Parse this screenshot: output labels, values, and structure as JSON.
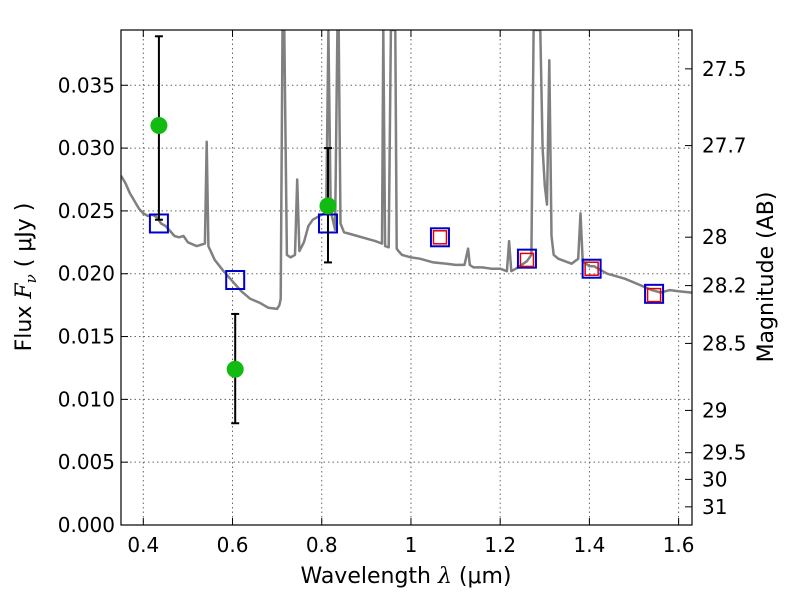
{
  "chart_data": {
    "type": "scatter",
    "xlabel_pre": "Wavelength  ",
    "xlabel_sym": "λ",
    "xlabel_unit": " (μm)",
    "ylabel_pre": "Flux  ",
    "ylabel_sym": "F",
    "ylabel_sub": "ν",
    "ylabel_unit": "  ( μJy )",
    "y2label": "Magnitude (AB)",
    "xlim": [
      0.35,
      1.63
    ],
    "ylim": [
      0.0,
      0.0394
    ],
    "grid": true,
    "xticks": [
      0.4,
      0.6,
      0.8,
      1.0,
      1.2,
      1.4,
      1.6
    ],
    "xtick_labels": [
      "0.4",
      "0.6",
      "0.8",
      "1",
      "1.2",
      "1.4",
      "1.6"
    ],
    "yticks": [
      0.0,
      0.005,
      0.01,
      0.015,
      0.02,
      0.025,
      0.03,
      0.035
    ],
    "ytick_labels": [
      "0.000",
      "0.005",
      "0.010",
      "0.015",
      "0.020",
      "0.025",
      "0.030",
      "0.035"
    ],
    "mag_ticks": [
      {
        "mag": 27.5,
        "label": "27.5"
      },
      {
        "mag": 27.7,
        "label": "27.7"
      },
      {
        "mag": 28.0,
        "label": "28"
      },
      {
        "mag": 28.2,
        "label": "28.2"
      },
      {
        "mag": 28.5,
        "label": "28.5"
      },
      {
        "mag": 29.0,
        "label": "29"
      },
      {
        "mag": 29.5,
        "label": "29.5"
      },
      {
        "mag": 30.0,
        "label": "30"
      },
      {
        "mag": 31.0,
        "label": "31"
      }
    ],
    "series": [
      {
        "kind": "errorbar",
        "color": "#11bb11",
        "points": [
          {
            "x": 0.435,
            "y": 0.0318,
            "lo": 0.0243,
            "hi": 0.0389
          },
          {
            "x": 0.606,
            "y": 0.0124,
            "lo": 0.0081,
            "hi": 0.0168
          },
          {
            "x": 0.814,
            "y": 0.0254,
            "lo": 0.0209,
            "hi": 0.03
          }
        ]
      },
      {
        "kind": "model_bandpass",
        "color": "#0000cc",
        "points": [
          {
            "x": 0.435,
            "y": 0.024
          },
          {
            "x": 0.606,
            "y": 0.0195
          },
          {
            "x": 0.814,
            "y": 0.024
          },
          {
            "x": 1.065,
            "y": 0.0229
          },
          {
            "x": 1.26,
            "y": 0.0212
          },
          {
            "x": 1.405,
            "y": 0.0204
          },
          {
            "x": 1.545,
            "y": 0.0184
          }
        ]
      },
      {
        "kind": "model_inner",
        "color": "#dd0000",
        "points": [
          {
            "x": 1.065,
            "y": 0.0229
          },
          {
            "x": 1.26,
            "y": 0.0211
          },
          {
            "x": 1.405,
            "y": 0.0204
          },
          {
            "x": 1.545,
            "y": 0.0183
          }
        ]
      },
      {
        "kind": "spectrum",
        "color": "#808080",
        "x": [
          0.35,
          0.36,
          0.37,
          0.38,
          0.39,
          0.4,
          0.41,
          0.42,
          0.43,
          0.44,
          0.45,
          0.46,
          0.47,
          0.48,
          0.49,
          0.5,
          0.52,
          0.538,
          0.542,
          0.546,
          0.56,
          0.58,
          0.6,
          0.62,
          0.64,
          0.66,
          0.68,
          0.7,
          0.705,
          0.708,
          0.712,
          0.714,
          0.716,
          0.718,
          0.722,
          0.73,
          0.74,
          0.745,
          0.75,
          0.76,
          0.77,
          0.78,
          0.79,
          0.8,
          0.81,
          0.815,
          0.82,
          0.83,
          0.835,
          0.838,
          0.842,
          0.85,
          0.86,
          0.88,
          0.9,
          0.92,
          0.935,
          0.938,
          0.942,
          0.95,
          0.955,
          0.958,
          0.962,
          0.965,
          0.968,
          0.972,
          0.98,
          1.0,
          1.02,
          1.05,
          1.08,
          1.1,
          1.12,
          1.128,
          1.132,
          1.14,
          1.16,
          1.18,
          1.2,
          1.215,
          1.22,
          1.225,
          1.24,
          1.26,
          1.27,
          1.275,
          1.28,
          1.285,
          1.29,
          1.295,
          1.3,
          1.305,
          1.31,
          1.315,
          1.32,
          1.33,
          1.36,
          1.375,
          1.38,
          1.385,
          1.4,
          1.41,
          1.42,
          1.44,
          1.46,
          1.48,
          1.5,
          1.52,
          1.54,
          1.56,
          1.58,
          1.6,
          1.63
        ],
        "y": [
          0.0278,
          0.0272,
          0.0264,
          0.0258,
          0.0252,
          0.0248,
          0.0246,
          0.0247,
          0.0245,
          0.024,
          0.0238,
          0.0234,
          0.023,
          0.0229,
          0.023,
          0.0225,
          0.0222,
          0.0224,
          0.0305,
          0.0222,
          0.0211,
          0.0202,
          0.0194,
          0.0186,
          0.018,
          0.0177,
          0.0173,
          0.0172,
          0.0175,
          0.018,
          0.0394,
          0.0394,
          0.0394,
          0.033,
          0.0215,
          0.0213,
          0.0215,
          0.0275,
          0.0218,
          0.0225,
          0.0238,
          0.0243,
          0.0245,
          0.0247,
          0.0248,
          0.0394,
          0.025,
          0.0235,
          0.0394,
          0.0394,
          0.024,
          0.0233,
          0.0232,
          0.023,
          0.0228,
          0.0226,
          0.0224,
          0.0394,
          0.0222,
          0.0221,
          0.0394,
          0.0394,
          0.0394,
          0.0394,
          0.022,
          0.0218,
          0.0215,
          0.0213,
          0.0212,
          0.0209,
          0.0208,
          0.0207,
          0.0207,
          0.022,
          0.0207,
          0.0205,
          0.0205,
          0.0204,
          0.0204,
          0.0202,
          0.0226,
          0.0202,
          0.0205,
          0.021,
          0.0215,
          0.0394,
          0.0394,
          0.0394,
          0.0394,
          0.03,
          0.027,
          0.0255,
          0.037,
          0.023,
          0.0215,
          0.0212,
          0.0208,
          0.0212,
          0.0248,
          0.021,
          0.0206,
          0.0206,
          0.0204,
          0.02,
          0.0198,
          0.0196,
          0.0193,
          0.019,
          0.0187,
          0.0185,
          0.0187,
          0.0186,
          0.0185
        ]
      }
    ]
  }
}
